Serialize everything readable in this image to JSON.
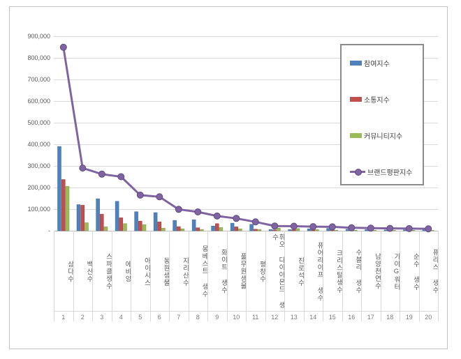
{
  "chart_data": {
    "type": "bar",
    "subtype": "grouped-bars-with-line-overlay",
    "title": "",
    "xlabel": "",
    "ylabel": "",
    "ylim": [
      0,
      900000
    ],
    "ytick_step": 100000,
    "ytick_labels": [
      "-",
      "100,000",
      "200,000",
      "300,000",
      "400,000",
      "500,000",
      "600,000",
      "700,000",
      "800,000",
      "900,000"
    ],
    "grid": true,
    "legend_position": "right-top-inside",
    "categories": [
      "삼다수",
      "백산수",
      "스파클생수",
      "에비앙",
      "아이시스",
      "동원샘물",
      "지리산수",
      "몽베스트 생수",
      "화이트 생수",
      "풀무원샘물",
      "평창수",
      "휘오 다이아몬드 생수",
      "진로석수",
      "퓨어라이프 생수",
      "크리스탈생수",
      "수블리 생수",
      "남양천연수",
      "가야G워터",
      "순수 생수",
      "퓨리스 생수"
    ],
    "ranks": [
      "1",
      "2",
      "3",
      "4",
      "5",
      "6",
      "7",
      "8",
      "9",
      "10",
      "11",
      "12",
      "13",
      "14",
      "15",
      "16",
      "17",
      "18",
      "19",
      "20"
    ],
    "series": [
      {
        "key": "participation",
        "name": "참여지수",
        "type": "bar",
        "color": "#4f81bd",
        "edge_color": "#3d6899",
        "values": [
          390000,
          121000,
          148000,
          136000,
          88000,
          84000,
          48000,
          51000,
          22000,
          35000,
          30000,
          6000,
          5000,
          9000,
          11000,
          7000,
          5000,
          4000,
          4000,
          7000
        ]
      },
      {
        "key": "communication",
        "name": "소통지수",
        "type": "bar",
        "color": "#c0504d",
        "edge_color": "#9e3d3b",
        "values": [
          237000,
          118000,
          77000,
          60000,
          45000,
          41000,
          19000,
          14000,
          33000,
          18000,
          7000,
          4000,
          5000,
          4000,
          5000,
          3000,
          3000,
          3000,
          2000,
          3000
        ]
      },
      {
        "key": "community",
        "name": "커뮤니티지수",
        "type": "bar",
        "color": "#9bbb59",
        "edge_color": "#7e9a46",
        "values": [
          205000,
          37000,
          18000,
          33000,
          28000,
          12000,
          9000,
          6000,
          15000,
          9000,
          6000,
          12000,
          10000,
          5000,
          3000,
          3000,
          2000,
          2000,
          2000,
          2000
        ]
      },
      {
        "key": "brand-reputation",
        "name": "브랜드평판지수",
        "type": "line",
        "color": "#8064a2",
        "marker_edge_color": "#5f4b80",
        "values": [
          849000,
          290000,
          262000,
          250000,
          165000,
          157000,
          99000,
          87000,
          68000,
          57000,
          41000,
          22000,
          21000,
          19000,
          18000,
          14000,
          12000,
          11000,
          10000,
          9000
        ]
      }
    ]
  },
  "frame": {
    "border_color": "#c3c3c3",
    "background": "#ffffff"
  }
}
